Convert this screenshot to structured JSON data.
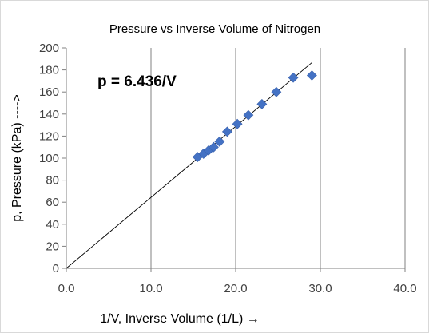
{
  "chart_data": {
    "type": "scatter",
    "title": "Pressure vs Inverse Volume of Nitrogen",
    "xlabel": "1/V, Inverse Volume  (1/L) →",
    "ylabel": "p, Pressure (kPa) ---->",
    "xlim": [
      0,
      40
    ],
    "ylim": [
      0,
      200
    ],
    "x_ticks": [
      0,
      10,
      20,
      30,
      40
    ],
    "x_tick_labels": [
      "0.0",
      "10.0",
      "20.0",
      "30.0",
      "40.0"
    ],
    "y_ticks": [
      0,
      20,
      40,
      60,
      80,
      100,
      120,
      140,
      160,
      180,
      200
    ],
    "y_tick_labels": [
      "0",
      "20",
      "40",
      "60",
      "80",
      "100",
      "120",
      "140",
      "160",
      "180",
      "200"
    ],
    "grid": "vertical-major",
    "annotation": "p = 6.436/V",
    "trendline": {
      "slope": 6.436,
      "x_range": [
        0,
        29
      ]
    },
    "marker_color": "#4472c4",
    "series": [
      {
        "points": [
          {
            "x": 15.5,
            "y": 101
          },
          {
            "x": 16.2,
            "y": 104
          },
          {
            "x": 16.8,
            "y": 107
          },
          {
            "x": 17.4,
            "y": 110
          },
          {
            "x": 18.1,
            "y": 115
          },
          {
            "x": 19.0,
            "y": 124
          },
          {
            "x": 20.2,
            "y": 131
          },
          {
            "x": 21.5,
            "y": 139
          },
          {
            "x": 23.1,
            "y": 149
          },
          {
            "x": 24.8,
            "y": 160
          },
          {
            "x": 26.8,
            "y": 173
          },
          {
            "x": 29.0,
            "y": 175
          }
        ]
      }
    ]
  }
}
